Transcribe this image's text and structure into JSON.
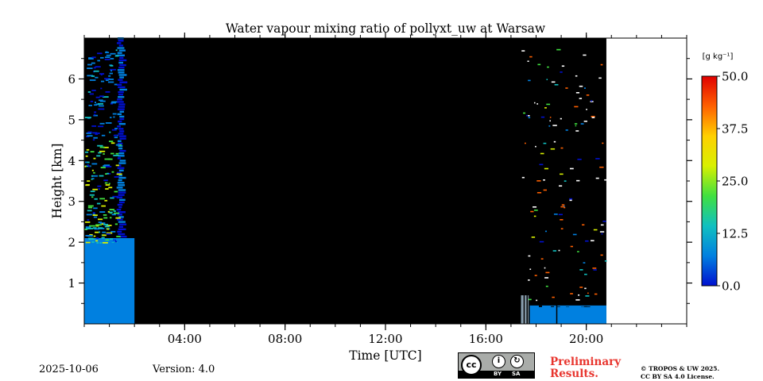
{
  "chart_data": {
    "type": "heatmap",
    "title": "Water vapour mixing ratio of pollyxt_uw at Warsaw",
    "xlabel": "Time [UTC]",
    "ylabel": "Height [km]",
    "xlim_hours": [
      0,
      24
    ],
    "ylim_km": [
      0,
      7
    ],
    "x_ticks": [
      {
        "hour": 4,
        "label": "04:00"
      },
      {
        "hour": 8,
        "label": "08:00"
      },
      {
        "hour": 12,
        "label": "12:00"
      },
      {
        "hour": 16,
        "label": "16:00"
      },
      {
        "hour": 20,
        "label": "20:00"
      }
    ],
    "y_ticks": [
      {
        "km": 1,
        "label": "1"
      },
      {
        "km": 2,
        "label": "2"
      },
      {
        "km": 3,
        "label": "3"
      },
      {
        "km": 4,
        "label": "4"
      },
      {
        "km": 5,
        "label": "5"
      },
      {
        "km": 6,
        "label": "6"
      }
    ],
    "measurement_periods_hours": [
      [
        0.0,
        2.0
      ],
      [
        17.4,
        20.8
      ]
    ],
    "no_data_after_hour": 20.8,
    "colorbar": {
      "label": "[g kg⁻¹]",
      "min": 0.0,
      "max": 50.0,
      "ticks": [
        "0.0",
        "12.5",
        "25.0",
        "37.5",
        "50.0"
      ],
      "colormap": [
        "#0010d0",
        "#0080e0",
        "#10c0c0",
        "#40e040",
        "#d8f000",
        "#ffd000",
        "#ff6000",
        "#e00000"
      ]
    },
    "features": [
      {
        "name": "boundary layer",
        "from_hour": 0.0,
        "to_hour": 2.0,
        "top_km": 2.1,
        "value_gkg": 6.5
      },
      {
        "name": "boundary layer",
        "from_hour": 17.4,
        "to_hour": 20.8,
        "top_km": 0.45,
        "value_gkg": 10
      },
      {
        "name": "moist column",
        "from_hour": 1.3,
        "to_hour": 1.7,
        "top_km": 7.0,
        "value_gkg": 3
      }
    ]
  },
  "footer": {
    "date": "2025-10-06",
    "version": "Version: 4.0",
    "preliminary_line1": "Preliminary",
    "preliminary_line2": "Results.",
    "copyright_line1": "© TROPOS & UW 2025.",
    "copyright_line2": "CC BY SA 4.0 License."
  },
  "license_badge": {
    "cc": "cc",
    "by": "BY",
    "sa": "SA"
  }
}
